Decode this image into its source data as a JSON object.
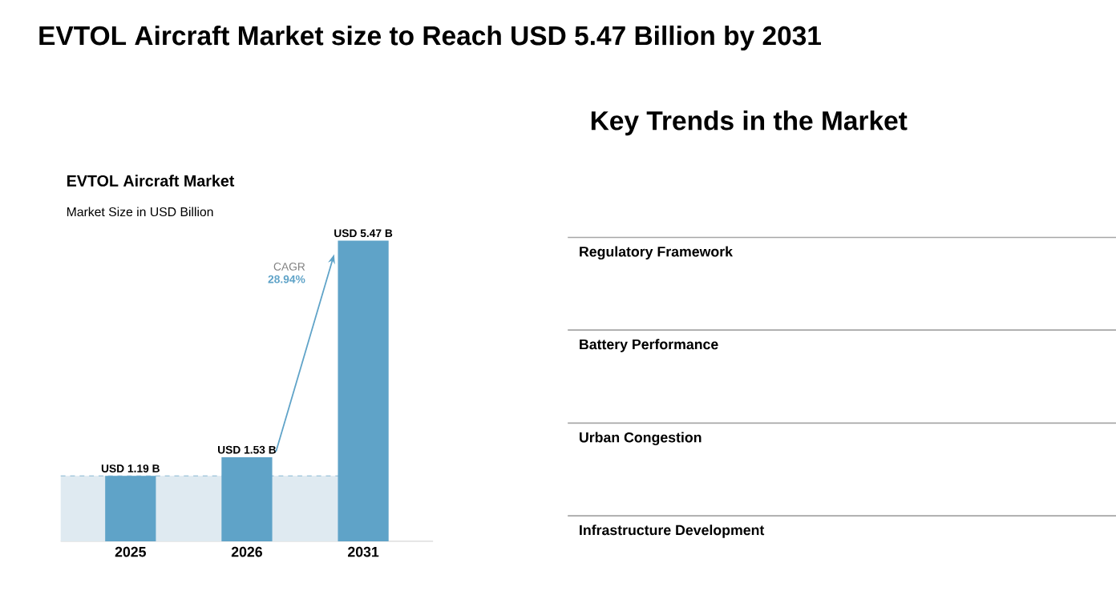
{
  "chart_data": [
    {
      "type": "other",
      "title": "EVTOL Aircraft Market size to Reach USD 5.47 Billion by 2031"
    },
    {
      "type": "bar",
      "title": "EVTOL Aircraft Market",
      "subtitle": "Market Size in USD Billion",
      "categories": [
        "2025",
        "2026",
        "2031"
      ],
      "values": [
        1.19,
        1.53,
        5.47
      ],
      "color": "#5fa3c8",
      "value_labels": [
        "USD 1.19 B",
        "USD 1.53 B",
        "USD 5.47 B"
      ],
      "annotations": [
        "CAGR",
        "28.94%"
      ],
      "bands": [
        {
          "axis": "y",
          "from": 0,
          "to": 1.19,
          "color": "#dfeaf1"
        }
      ],
      "ref_lines": [
        {
          "axis": "y",
          "value": 1.19,
          "line_style": "dashed",
          "color": "#6aa6c8"
        }
      ]
    },
    {
      "type": "other",
      "title": "Key Trends in the Market",
      "annotations": [
        "Regulatory Framework",
        "Battery Performance",
        "Urban Congestion",
        "Infrastructure Development"
      ]
    }
  ]
}
